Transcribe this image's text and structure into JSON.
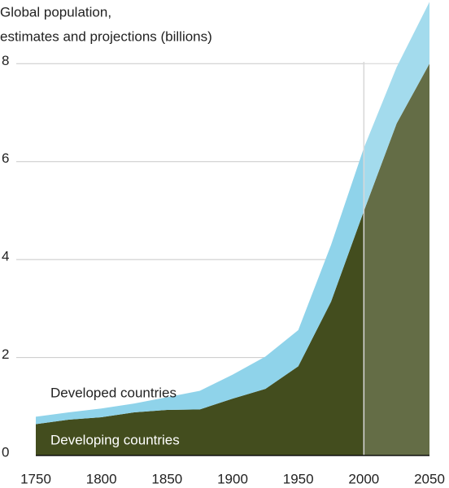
{
  "chart_data": {
    "type": "stacked_area",
    "title": [
      "Global population,",
      "estimates and projections (billions)"
    ],
    "x": [
      1750,
      1775,
      1800,
      1825,
      1850,
      1875,
      1900,
      1925,
      1950,
      1975,
      2000,
      2025,
      2050
    ],
    "series": [
      {
        "name": "Developing countries",
        "color": "#434d1e",
        "values": [
          0.64,
          0.73,
          0.78,
          0.88,
          0.93,
          0.94,
          1.16,
          1.36,
          1.82,
          3.14,
          4.99,
          6.78,
          8.0
        ]
      },
      {
        "name": "Developed countries",
        "color": "#8fd3ea",
        "values": [
          0.15,
          0.15,
          0.18,
          0.18,
          0.26,
          0.38,
          0.49,
          0.66,
          0.74,
          1.16,
          1.29,
          1.15,
          1.26
        ]
      }
    ],
    "projection_start": 2000,
    "xlim": [
      1750,
      2050
    ],
    "xticks": [
      1750,
      1800,
      1850,
      1900,
      1950,
      2000,
      2050
    ],
    "ylim": [
      0,
      9.3
    ],
    "yticks": [
      0,
      2,
      4,
      6,
      8
    ],
    "grid": true
  }
}
